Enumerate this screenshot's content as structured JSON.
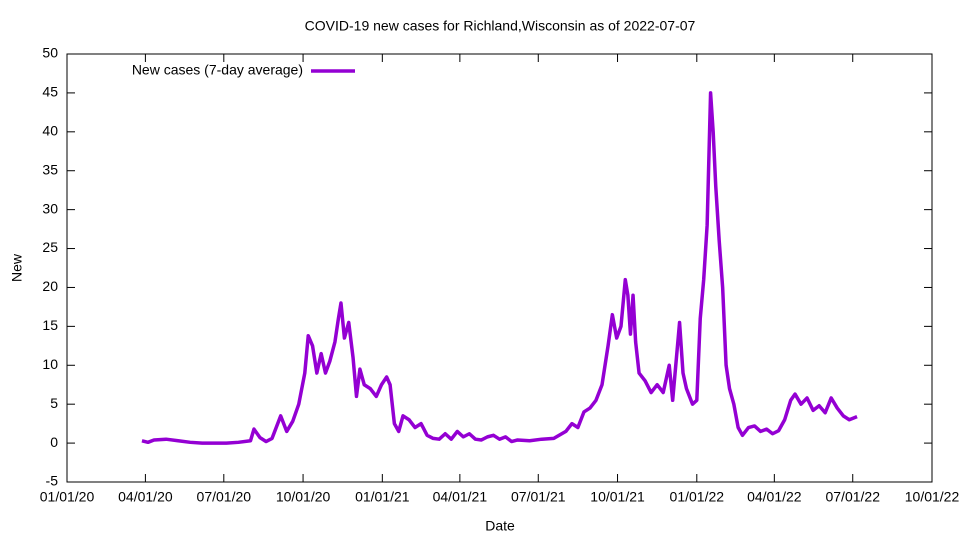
{
  "chart_data": {
    "type": "line",
    "title": "COVID-19 new cases for Richland,Wisconsin as of 2022-07-07",
    "xlabel": "Date",
    "ylabel": "New",
    "legend": "top-left",
    "xlim": [
      "2020-01-01",
      "2022-10-01"
    ],
    "xticks": [
      {
        "value": "2020-01-01",
        "label": "01/01/20"
      },
      {
        "value": "2020-04-01",
        "label": "04/01/20"
      },
      {
        "value": "2020-07-01",
        "label": "07/01/20"
      },
      {
        "value": "2020-10-01",
        "label": "10/01/20"
      },
      {
        "value": "2021-01-01",
        "label": "01/01/21"
      },
      {
        "value": "2021-04-01",
        "label": "04/01/21"
      },
      {
        "value": "2021-07-01",
        "label": "07/01/21"
      },
      {
        "value": "2021-10-01",
        "label": "10/01/21"
      },
      {
        "value": "2022-01-01",
        "label": "01/01/22"
      },
      {
        "value": "2022-04-01",
        "label": "04/01/22"
      },
      {
        "value": "2022-07-01",
        "label": "07/01/22"
      },
      {
        "value": "2022-10-01",
        "label": "10/01/22"
      }
    ],
    "ylim": [
      -5,
      50
    ],
    "yticks": [
      -5,
      0,
      5,
      10,
      15,
      20,
      25,
      30,
      35,
      40,
      45,
      50
    ],
    "x": [
      "2020-03-28",
      "2020-04-04",
      "2020-04-11",
      "2020-04-25",
      "2020-05-09",
      "2020-05-23",
      "2020-06-06",
      "2020-06-20",
      "2020-07-04",
      "2020-07-18",
      "2020-08-01",
      "2020-08-05",
      "2020-08-12",
      "2020-08-19",
      "2020-08-26",
      "2020-09-05",
      "2020-09-12",
      "2020-09-19",
      "2020-09-26",
      "2020-10-03",
      "2020-10-07",
      "2020-10-12",
      "2020-10-17",
      "2020-10-22",
      "2020-10-27",
      "2020-11-01",
      "2020-11-07",
      "2020-11-11",
      "2020-11-14",
      "2020-11-18",
      "2020-11-23",
      "2020-11-28",
      "2020-12-02",
      "2020-12-06",
      "2020-12-11",
      "2020-12-18",
      "2020-12-25",
      "2020-12-31",
      "2021-01-06",
      "2021-01-10",
      "2021-01-15",
      "2021-01-20",
      "2021-01-25",
      "2021-02-01",
      "2021-02-08",
      "2021-02-15",
      "2021-02-22",
      "2021-03-01",
      "2021-03-08",
      "2021-03-15",
      "2021-03-22",
      "2021-03-29",
      "2021-04-05",
      "2021-04-12",
      "2021-04-19",
      "2021-04-26",
      "2021-05-03",
      "2021-05-10",
      "2021-05-17",
      "2021-05-24",
      "2021-05-31",
      "2021-06-07",
      "2021-06-21",
      "2021-07-05",
      "2021-07-19",
      "2021-08-02",
      "2021-08-09",
      "2021-08-16",
      "2021-08-23",
      "2021-08-30",
      "2021-09-06",
      "2021-09-13",
      "2021-09-20",
      "2021-09-25",
      "2021-09-30",
      "2021-10-05",
      "2021-10-10",
      "2021-10-13",
      "2021-10-16",
      "2021-10-19",
      "2021-10-22",
      "2021-10-26",
      "2021-11-02",
      "2021-11-09",
      "2021-11-16",
      "2021-11-23",
      "2021-11-30",
      "2021-12-04",
      "2021-12-12",
      "2021-12-16",
      "2021-12-20",
      "2021-12-27",
      "2022-01-01",
      "2022-01-05",
      "2022-01-09",
      "2022-01-13",
      "2022-01-17",
      "2022-01-20",
      "2022-01-23",
      "2022-01-27",
      "2022-01-31",
      "2022-02-04",
      "2022-02-08",
      "2022-02-13",
      "2022-02-18",
      "2022-02-23",
      "2022-03-02",
      "2022-03-09",
      "2022-03-16",
      "2022-03-23",
      "2022-03-30",
      "2022-04-06",
      "2022-04-13",
      "2022-04-20",
      "2022-04-25",
      "2022-05-02",
      "2022-05-09",
      "2022-05-16",
      "2022-05-23",
      "2022-05-30",
      "2022-06-06",
      "2022-06-13",
      "2022-06-20",
      "2022-06-27",
      "2022-07-06"
    ],
    "series": [
      {
        "name": "New cases (7-day average)",
        "color": "#9400d3",
        "values": [
          0.3,
          0.1,
          0.4,
          0.5,
          0.3,
          0.1,
          0,
          0,
          0,
          0.1,
          0.3,
          1.8,
          0.7,
          0.2,
          0.6,
          3.5,
          1.5,
          2.8,
          5,
          9,
          13.8,
          12.5,
          9,
          11.5,
          9,
          10.5,
          13,
          16,
          18,
          13.5,
          15.5,
          11,
          6,
          9.5,
          7.5,
          7,
          6,
          7.5,
          8.5,
          7.5,
          2.5,
          1.5,
          3.5,
          3,
          2,
          2.5,
          1,
          0.6,
          0.5,
          1.2,
          0.5,
          1.5,
          0.8,
          1.2,
          0.5,
          0.4,
          0.8,
          1,
          0.5,
          0.8,
          0.2,
          0.4,
          0.3,
          0.5,
          0.6,
          1.5,
          2.5,
          2,
          4,
          4.5,
          5.5,
          7.5,
          12.5,
          16.5,
          13.5,
          15,
          21,
          19,
          14,
          19,
          13,
          9,
          8,
          6.5,
          7.5,
          6.5,
          10,
          5.5,
          15.5,
          9,
          7,
          5,
          5.5,
          16,
          21,
          28,
          45,
          40,
          33,
          26,
          20,
          10,
          7,
          5,
          2,
          1,
          2,
          2.2,
          1.5,
          1.8,
          1.2,
          1.6,
          3,
          5.5,
          6.3,
          5,
          5.8,
          4.2,
          4.8,
          3.9,
          5.8,
          4.5,
          3.5,
          3,
          3.4
        ]
      }
    ]
  }
}
